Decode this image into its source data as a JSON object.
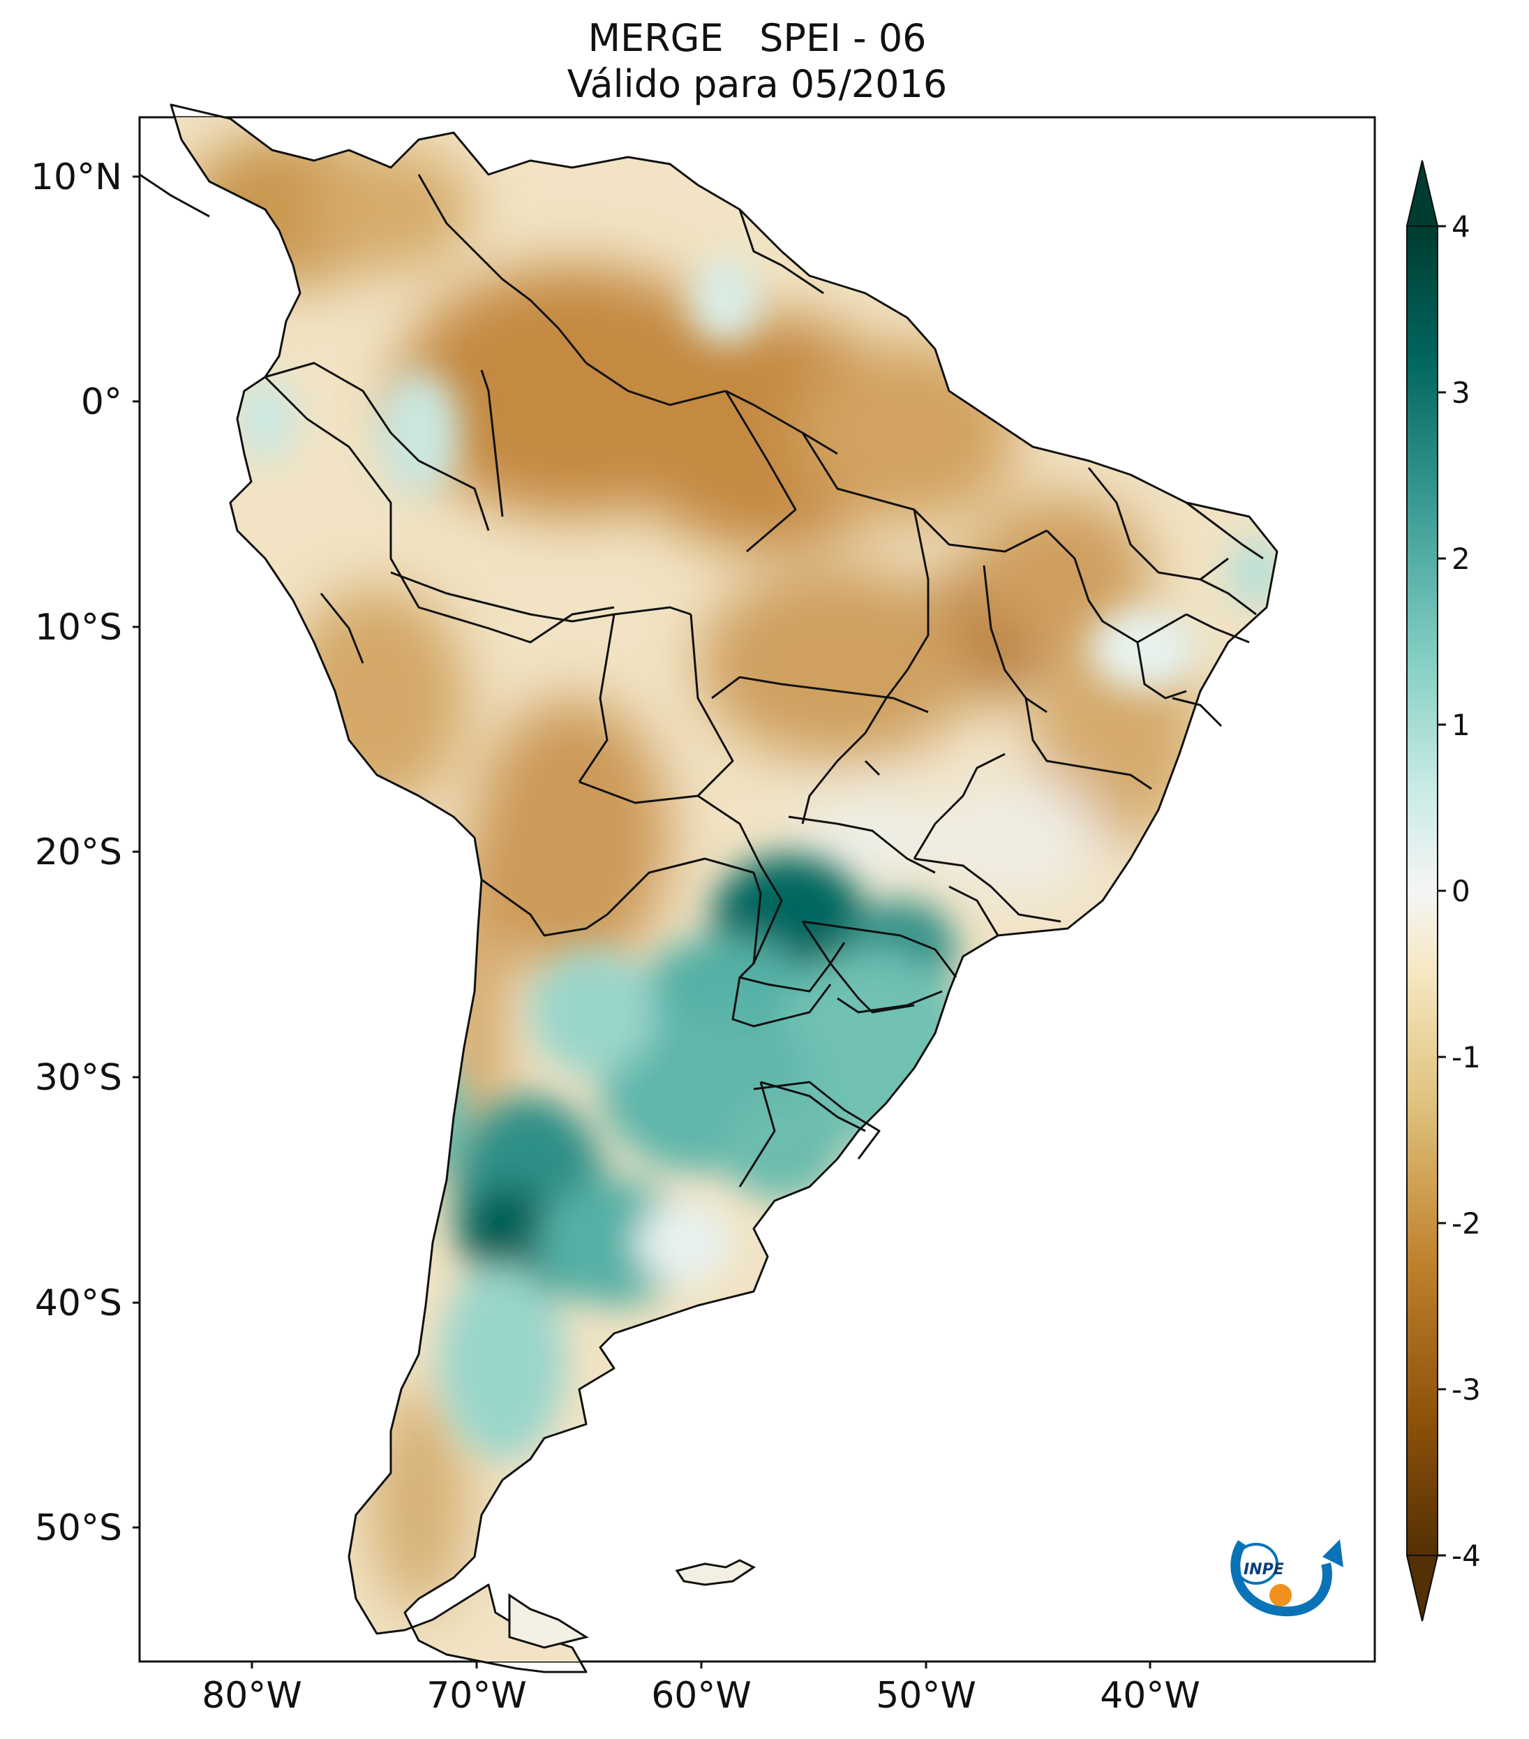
{
  "title": {
    "line1": "MERGE   SPEI - 06",
    "line2": "Válido para 05/2016"
  },
  "axes": {
    "lat_labels": [
      "10°N",
      "0°",
      "10°S",
      "20°S",
      "30°S",
      "40°S",
      "50°S"
    ],
    "lat_values": [
      10,
      0,
      -10,
      -20,
      -30,
      -40,
      -50
    ],
    "lon_labels": [
      "80°W",
      "70°W",
      "60°W",
      "50°W",
      "40°W"
    ],
    "lon_values": [
      -80,
      -70,
      -60,
      -50,
      -40
    ],
    "lon_range": [
      -85,
      -30
    ],
    "lat_range": [
      -56.5,
      13
    ]
  },
  "colorbar": {
    "ticks": [
      "4",
      "3",
      "2",
      "1",
      "0",
      "-1",
      "-2",
      "-3",
      "-4"
    ],
    "min": -4,
    "max": 4,
    "extend": "both",
    "colors_low_to_high": [
      "#543005",
      "#8c510a",
      "#bf812d",
      "#dfc27d",
      "#f6e8c3",
      "#f5f5f5",
      "#c7eae5",
      "#80cdc1",
      "#35978f",
      "#01665e",
      "#003c30"
    ]
  },
  "logo": {
    "text": "INPE"
  }
}
